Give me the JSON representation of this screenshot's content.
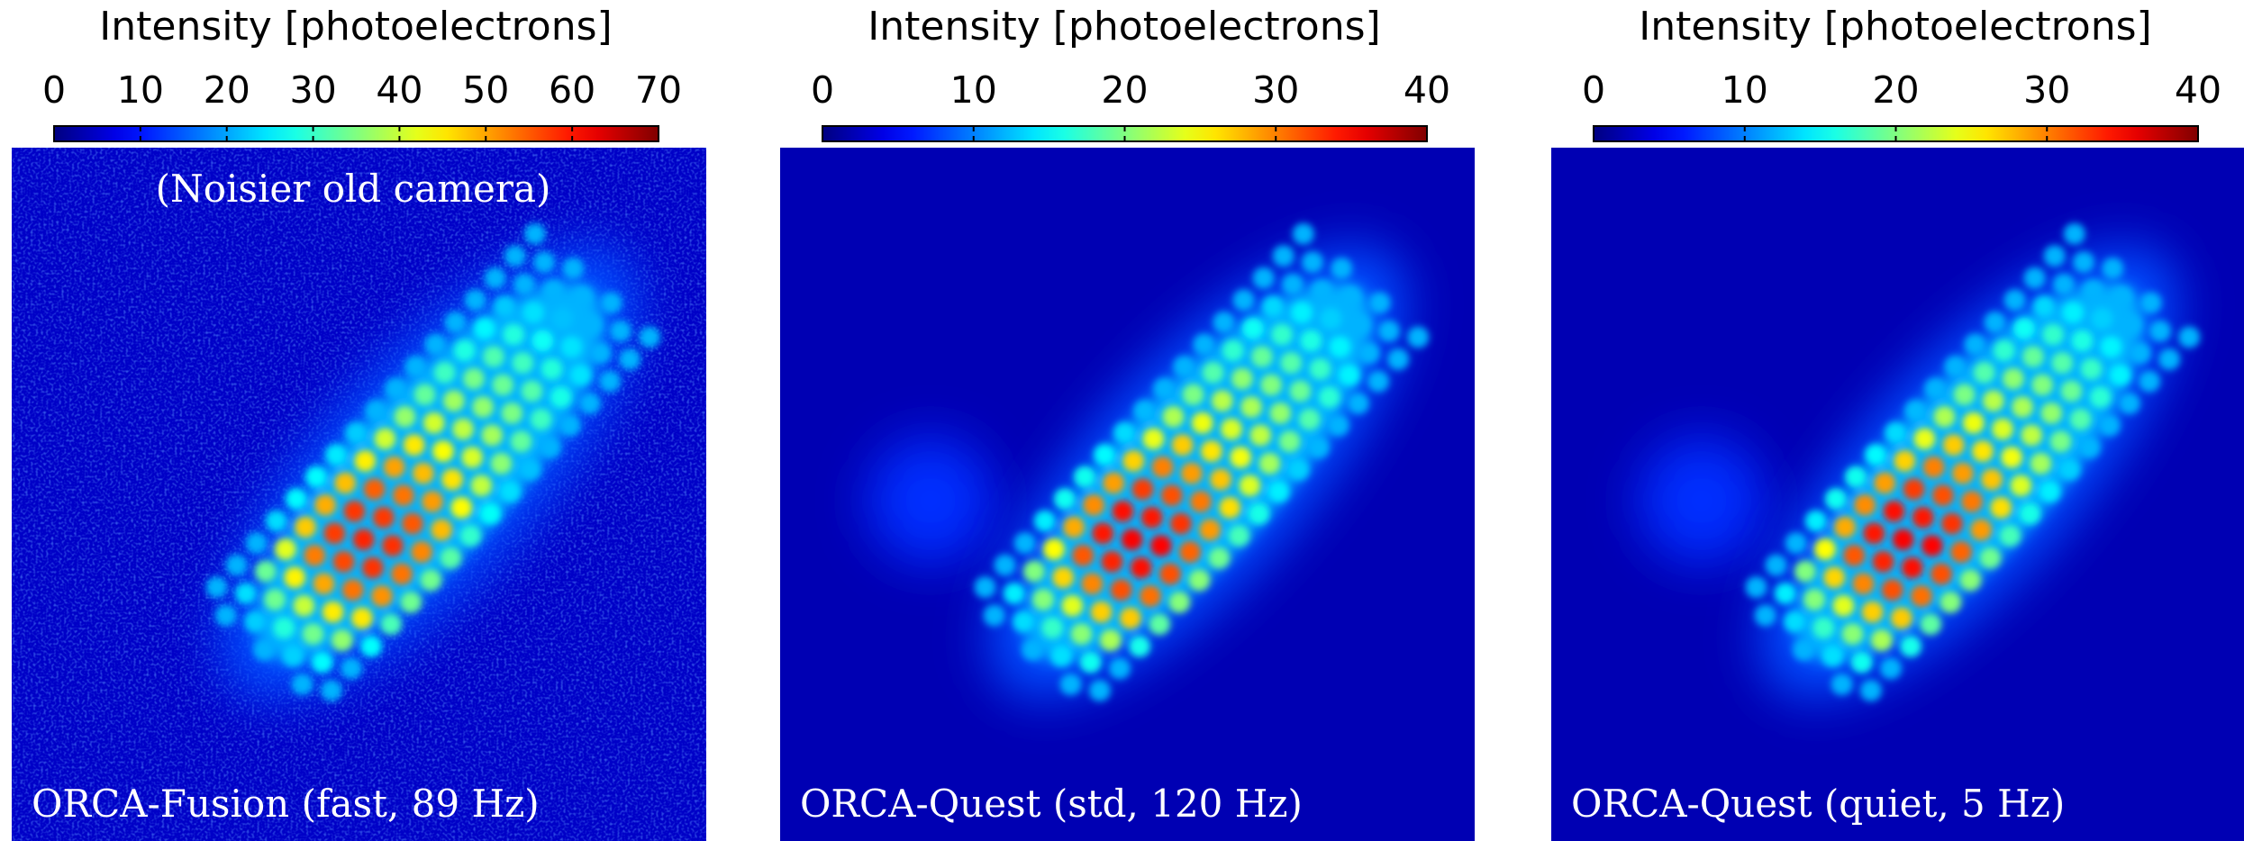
{
  "chart_data": [
    {
      "type": "image",
      "colormap": "jet",
      "xlabel": "Intensity [photoelectrons]",
      "xlim": [
        0,
        70
      ],
      "xticks": [
        0,
        10,
        20,
        30,
        40,
        50,
        60,
        70
      ],
      "caption": "ORCA-Fusion (fast, 89 Hz)",
      "annotation": "(Noisier old camera)"
    },
    {
      "type": "image",
      "colormap": "jet",
      "xlabel": "Intensity [photoelectrons]",
      "xlim": [
        0,
        40
      ],
      "xticks": [
        0,
        10,
        20,
        30,
        40
      ],
      "caption": "ORCA-Quest (std, 120 Hz)"
    },
    {
      "type": "image",
      "colormap": "jet",
      "xlabel": "Intensity [photoelectrons]",
      "xlim": [
        0,
        40
      ],
      "xticks": [
        0,
        10,
        20,
        30,
        40
      ],
      "caption": "ORCA-Quest (quiet, 5 Hz)"
    }
  ]
}
